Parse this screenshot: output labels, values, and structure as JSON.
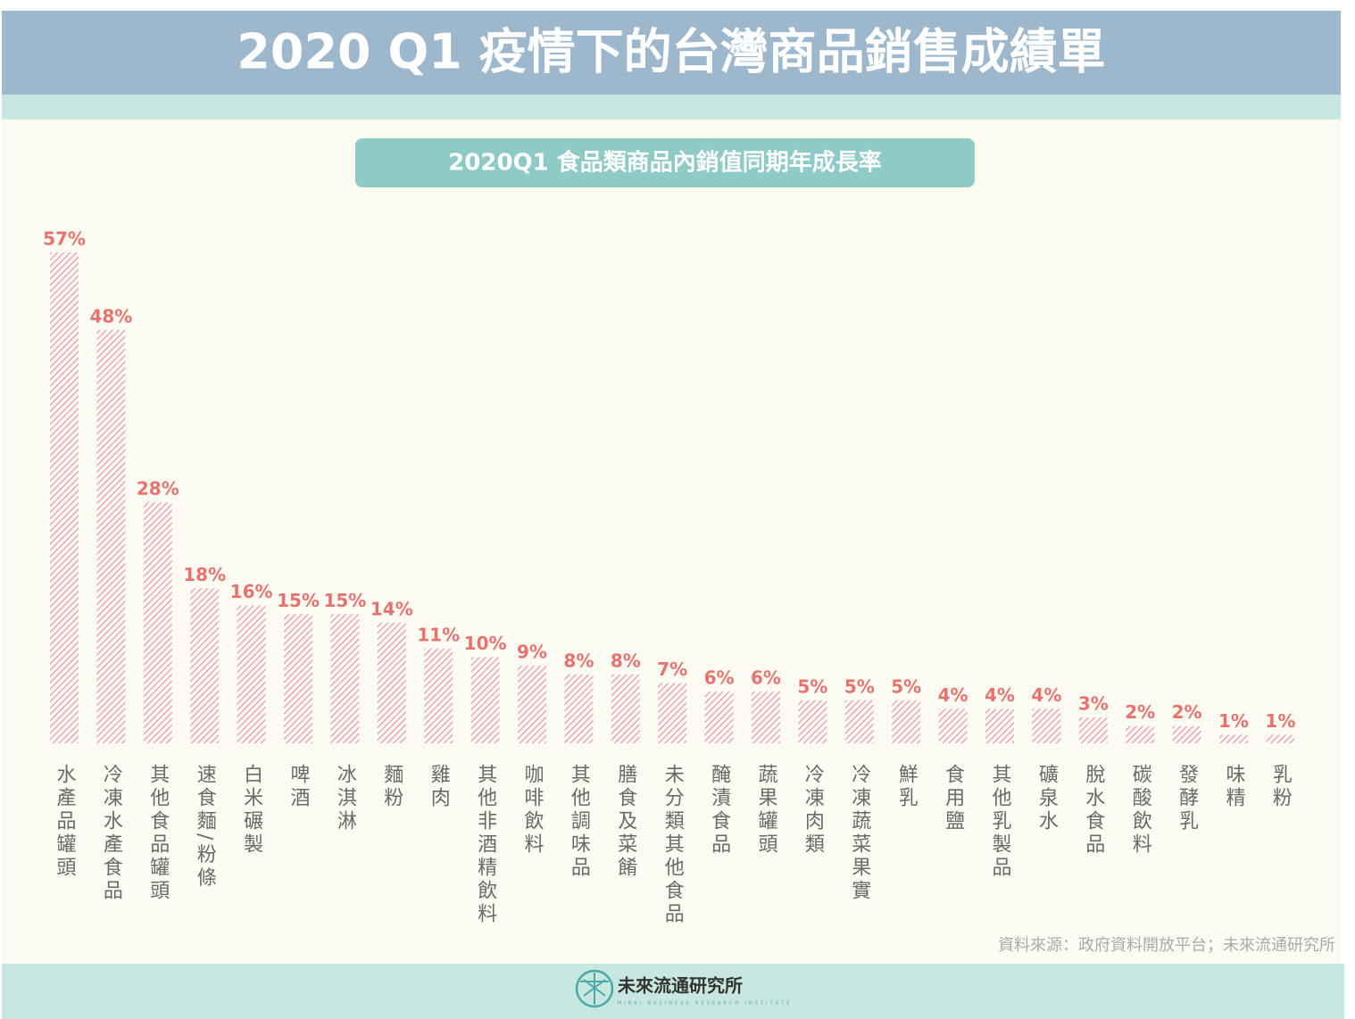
{
  "chart_data": {
    "type": "bar",
    "title": "2020 Q1 疫情下的台灣商品銷售成績單",
    "subtitle": "2020Q1  食品類商品內銷值同期年成長率",
    "categories": [
      "水產品罐頭",
      "冷凍水產食品",
      "其他食品罐頭",
      "速食麵/粉條",
      "白米碾製",
      "啤酒",
      "冰淇淋",
      "麵粉",
      "雞肉",
      "其他非酒精飲料",
      "咖啡飲料",
      "其他調味品",
      "膳食及菜餚",
      "未分類其他食品",
      "醃漬食品",
      "蔬果罐頭",
      "冷凍肉類",
      "冷凍蔬菜果實",
      "鮮乳",
      "食用鹽",
      "其他乳製品",
      "礦泉水",
      "脫水食品",
      "碳酸飲料",
      "發酵乳",
      "味精",
      "乳粉"
    ],
    "values": [
      57,
      48,
      28,
      18,
      16,
      15,
      15,
      14,
      11,
      10,
      9,
      8,
      8,
      7,
      6,
      6,
      5,
      5,
      5,
      4,
      4,
      4,
      3,
      2,
      2,
      1,
      1
    ],
    "value_labels": [
      "57%",
      "48%",
      "28%",
      "18%",
      "16%",
      "15%",
      "15%",
      "14%",
      "11%",
      "10%",
      "9%",
      "8%",
      "8%",
      "7%",
      "6%",
      "6%",
      "5%",
      "5%",
      "5%",
      "4%",
      "4%",
      "4%",
      "3%",
      "2%",
      "2%",
      "1%",
      "1%"
    ],
    "color": "#f2a3aa",
    "source": "資料來源：政府資料開放平台；未來流通研究所",
    "logo": "未來流通研究所",
    "logo_subtitle": "MIRAI BUSINESS RESEARCH INSTITUTE"
  }
}
